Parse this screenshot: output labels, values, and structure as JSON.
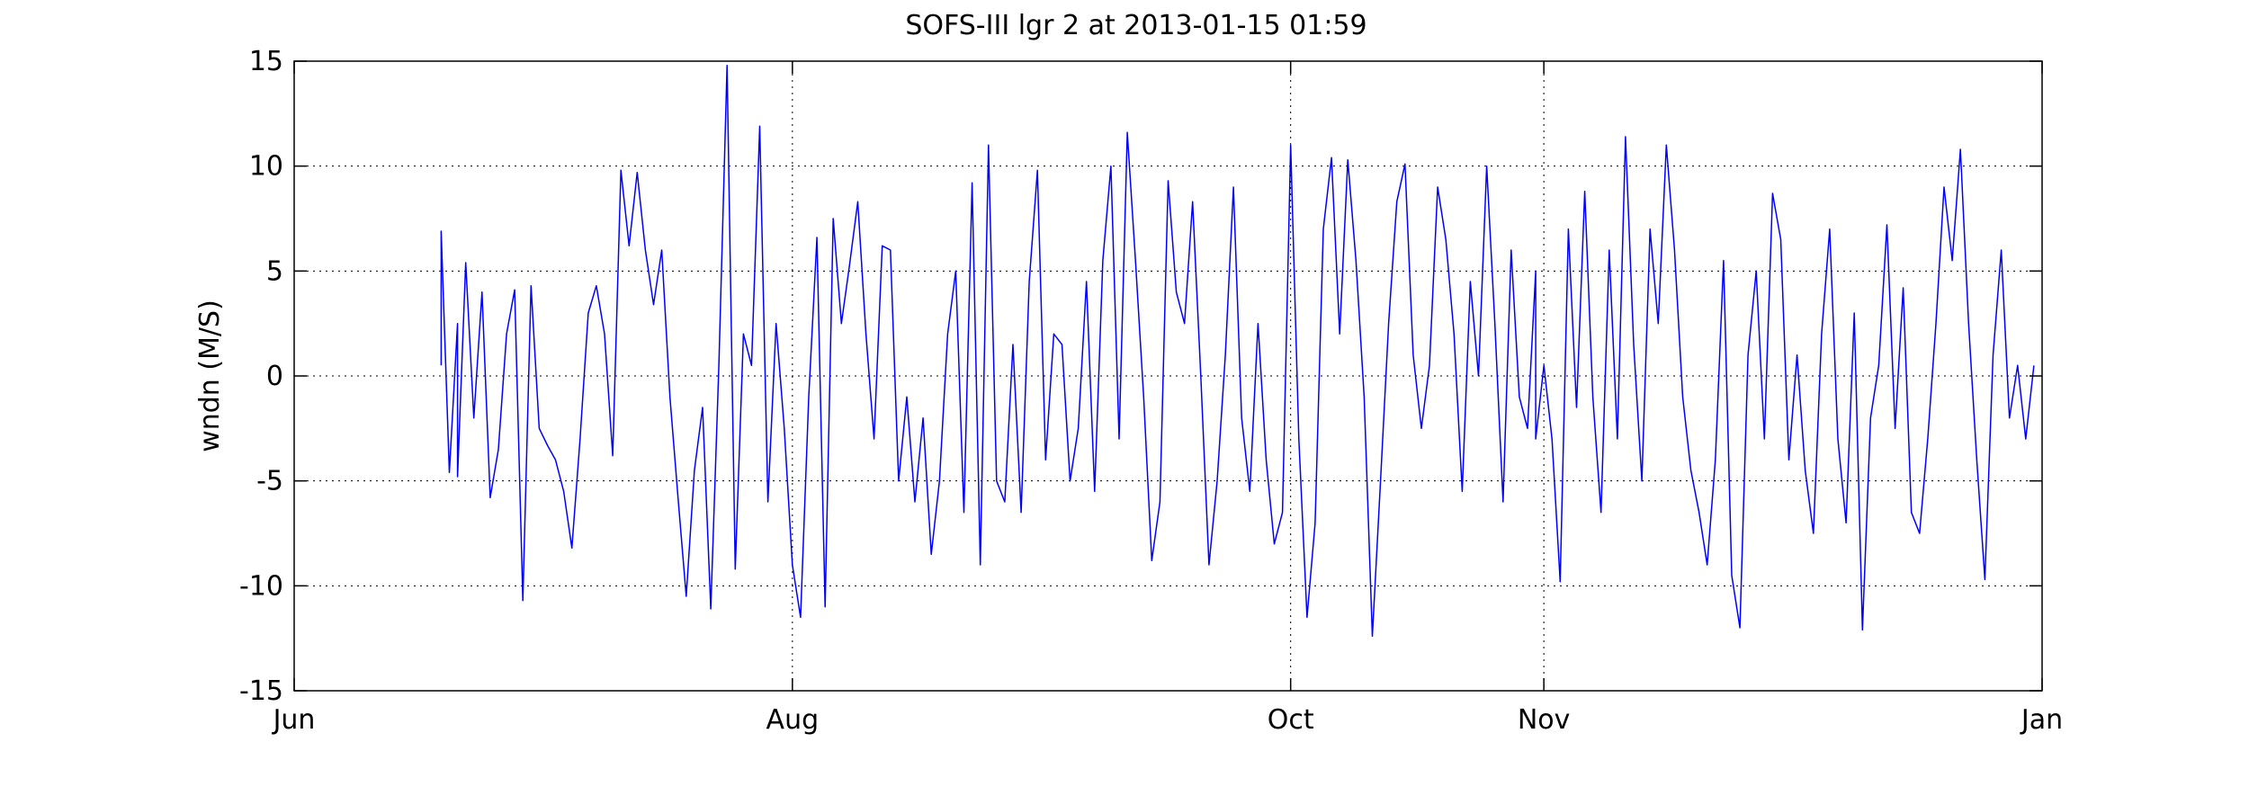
{
  "chart_data": {
    "type": "line",
    "title": "SOFS-III lgr 2 at 2013-01-15 01:59",
    "xlabel": "",
    "ylabel": "wndn (M/S)",
    "x_axis": {
      "type": "date",
      "range": [
        "2012-06-01",
        "2013-01-01"
      ],
      "tick_labels": [
        "Jun",
        "Aug",
        "Oct",
        "Nov",
        "Jan"
      ],
      "tick_dates": [
        "2012-06-01",
        "2012-08-01",
        "2012-10-01",
        "2012-11-01",
        "2013-01-01"
      ]
    },
    "ylim": [
      -15,
      15
    ],
    "y_ticks": [
      -15,
      -10,
      -5,
      0,
      5,
      10,
      15
    ],
    "y_tick_labels": [
      "-15",
      "-10",
      "-5",
      "0",
      "5",
      "10",
      "15"
    ],
    "grid": true,
    "series": [
      {
        "color": "#0000ff",
        "points": [
          [
            "2012-06-19",
            0.5
          ],
          [
            "2012-06-19",
            6.9
          ],
          [
            "2012-06-20",
            -4.6
          ],
          [
            "2012-06-21",
            2.5
          ],
          [
            "2012-06-21",
            -4.8
          ],
          [
            "2012-06-22",
            5.4
          ],
          [
            "2012-06-23",
            -2.0
          ],
          [
            "2012-06-24",
            4.0
          ],
          [
            "2012-06-25",
            -5.8
          ],
          [
            "2012-06-26",
            -3.5
          ],
          [
            "2012-06-27",
            2.0
          ],
          [
            "2012-06-28",
            4.1
          ],
          [
            "2012-06-29",
            -10.7
          ],
          [
            "2012-06-30",
            4.3
          ],
          [
            "2012-07-01",
            -2.5
          ],
          [
            "2012-07-02",
            -3.3
          ],
          [
            "2012-07-03",
            -4.0
          ],
          [
            "2012-07-04",
            -5.5
          ],
          [
            "2012-07-05",
            -8.2
          ],
          [
            "2012-07-06",
            -3.0
          ],
          [
            "2012-07-07",
            3.0
          ],
          [
            "2012-07-08",
            4.3
          ],
          [
            "2012-07-09",
            2.0
          ],
          [
            "2012-07-10",
            -3.8
          ],
          [
            "2012-07-11",
            9.8
          ],
          [
            "2012-07-12",
            6.2
          ],
          [
            "2012-07-13",
            9.7
          ],
          [
            "2012-07-14",
            6.0
          ],
          [
            "2012-07-15",
            3.4
          ],
          [
            "2012-07-16",
            6.0
          ],
          [
            "2012-07-17",
            -1.0
          ],
          [
            "2012-07-18",
            -5.8
          ],
          [
            "2012-07-19",
            -10.5
          ],
          [
            "2012-07-20",
            -4.5
          ],
          [
            "2012-07-21",
            -1.5
          ],
          [
            "2012-07-22",
            -11.1
          ],
          [
            "2012-07-23",
            0.5
          ],
          [
            "2012-07-24",
            14.8
          ],
          [
            "2012-07-25",
            -9.2
          ],
          [
            "2012-07-26",
            2.0
          ],
          [
            "2012-07-27",
            0.5
          ],
          [
            "2012-07-28",
            11.9
          ],
          [
            "2012-07-29",
            -6.0
          ],
          [
            "2012-07-30",
            2.5
          ],
          [
            "2012-07-31",
            -2.5
          ],
          [
            "2012-08-01",
            -9.0
          ],
          [
            "2012-08-02",
            -11.5
          ],
          [
            "2012-08-03",
            -1.0
          ],
          [
            "2012-08-04",
            6.6
          ],
          [
            "2012-08-05",
            -11.0
          ],
          [
            "2012-08-06",
            7.5
          ],
          [
            "2012-08-07",
            2.5
          ],
          [
            "2012-08-08",
            5.3
          ],
          [
            "2012-08-09",
            8.3
          ],
          [
            "2012-08-10",
            2.0
          ],
          [
            "2012-08-11",
            -3.0
          ],
          [
            "2012-08-12",
            6.2
          ],
          [
            "2012-08-13",
            6.0
          ],
          [
            "2012-08-14",
            -5.0
          ],
          [
            "2012-08-15",
            -1.0
          ],
          [
            "2012-08-16",
            -6.0
          ],
          [
            "2012-08-17",
            -2.0
          ],
          [
            "2012-08-18",
            -8.5
          ],
          [
            "2012-08-19",
            -5.0
          ],
          [
            "2012-08-20",
            2.0
          ],
          [
            "2012-08-21",
            5.0
          ],
          [
            "2012-08-22",
            -6.5
          ],
          [
            "2012-08-23",
            9.2
          ],
          [
            "2012-08-24",
            -9.0
          ],
          [
            "2012-08-25",
            11.0
          ],
          [
            "2012-08-26",
            -5.0
          ],
          [
            "2012-08-27",
            -6.0
          ],
          [
            "2012-08-28",
            1.5
          ],
          [
            "2012-08-29",
            -6.5
          ],
          [
            "2012-08-30",
            4.5
          ],
          [
            "2012-08-31",
            9.8
          ],
          [
            "2012-09-01",
            -4.0
          ],
          [
            "2012-09-02",
            2.0
          ],
          [
            "2012-09-03",
            1.5
          ],
          [
            "2012-09-04",
            -5.0
          ],
          [
            "2012-09-05",
            -2.5
          ],
          [
            "2012-09-06",
            4.5
          ],
          [
            "2012-09-07",
            -5.5
          ],
          [
            "2012-09-08",
            5.5
          ],
          [
            "2012-09-09",
            10.0
          ],
          [
            "2012-09-10",
            -3.0
          ],
          [
            "2012-09-11",
            11.6
          ],
          [
            "2012-09-12",
            5.5
          ],
          [
            "2012-09-13",
            -1.0
          ],
          [
            "2012-09-14",
            -8.8
          ],
          [
            "2012-09-15",
            -6.0
          ],
          [
            "2012-09-16",
            9.3
          ],
          [
            "2012-09-17",
            4.0
          ],
          [
            "2012-09-18",
            2.5
          ],
          [
            "2012-09-19",
            8.3
          ],
          [
            "2012-09-20",
            0.0
          ],
          [
            "2012-09-21",
            -9.0
          ],
          [
            "2012-09-22",
            -5.0
          ],
          [
            "2012-09-23",
            1.0
          ],
          [
            "2012-09-24",
            9.0
          ],
          [
            "2012-09-25",
            -2.0
          ],
          [
            "2012-09-26",
            -5.5
          ],
          [
            "2012-09-27",
            2.5
          ],
          [
            "2012-09-28",
            -4.0
          ],
          [
            "2012-09-29",
            -8.0
          ],
          [
            "2012-09-30",
            -6.5
          ],
          [
            "2012-10-01",
            11.0
          ],
          [
            "2012-10-02",
            -3.0
          ],
          [
            "2012-10-03",
            -11.5
          ],
          [
            "2012-10-04",
            -7.0
          ],
          [
            "2012-10-05",
            7.0
          ],
          [
            "2012-10-06",
            10.4
          ],
          [
            "2012-10-07",
            2.0
          ],
          [
            "2012-10-08",
            10.3
          ],
          [
            "2012-10-09",
            5.5
          ],
          [
            "2012-10-10",
            -1.0
          ],
          [
            "2012-10-11",
            -12.4
          ],
          [
            "2012-10-12",
            -5.0
          ],
          [
            "2012-10-13",
            2.5
          ],
          [
            "2012-10-14",
            8.3
          ],
          [
            "2012-10-15",
            10.1
          ],
          [
            "2012-10-16",
            1.0
          ],
          [
            "2012-10-17",
            -2.5
          ],
          [
            "2012-10-18",
            0.5
          ],
          [
            "2012-10-19",
            9.0
          ],
          [
            "2012-10-20",
            6.5
          ],
          [
            "2012-10-21",
            2.0
          ],
          [
            "2012-10-22",
            -5.5
          ],
          [
            "2012-10-23",
            4.5
          ],
          [
            "2012-10-24",
            0.0
          ],
          [
            "2012-10-25",
            10.0
          ],
          [
            "2012-10-26",
            2.5
          ],
          [
            "2012-10-27",
            -6.0
          ],
          [
            "2012-10-28",
            6.0
          ],
          [
            "2012-10-29",
            -1.0
          ],
          [
            "2012-10-30",
            -2.5
          ],
          [
            "2012-10-31",
            5.0
          ],
          [
            "2012-10-31",
            -3.0
          ],
          [
            "2012-11-01",
            0.5
          ],
          [
            "2012-11-02",
            -3.0
          ],
          [
            "2012-11-03",
            -9.8
          ],
          [
            "2012-11-04",
            7.0
          ],
          [
            "2012-11-05",
            -1.5
          ],
          [
            "2012-11-06",
            8.8
          ],
          [
            "2012-11-07",
            -1.0
          ],
          [
            "2012-11-08",
            -6.5
          ],
          [
            "2012-11-09",
            6.0
          ],
          [
            "2012-11-10",
            -3.0
          ],
          [
            "2012-11-11",
            11.4
          ],
          [
            "2012-11-12",
            1.5
          ],
          [
            "2012-11-13",
            -5.0
          ],
          [
            "2012-11-14",
            7.0
          ],
          [
            "2012-11-15",
            2.5
          ],
          [
            "2012-11-16",
            11.0
          ],
          [
            "2012-11-17",
            6.0
          ],
          [
            "2012-11-18",
            -1.0
          ],
          [
            "2012-11-19",
            -4.5
          ],
          [
            "2012-11-20",
            -6.5
          ],
          [
            "2012-11-21",
            -9.0
          ],
          [
            "2012-11-22",
            -4.0
          ],
          [
            "2012-11-23",
            5.5
          ],
          [
            "2012-11-24",
            -9.5
          ],
          [
            "2012-11-25",
            -12.0
          ],
          [
            "2012-11-26",
            1.0
          ],
          [
            "2012-11-27",
            5.0
          ],
          [
            "2012-11-28",
            -3.0
          ],
          [
            "2012-11-29",
            8.7
          ],
          [
            "2012-11-30",
            6.5
          ],
          [
            "2012-12-01",
            -4.0
          ],
          [
            "2012-12-02",
            1.0
          ],
          [
            "2012-12-03",
            -4.5
          ],
          [
            "2012-12-04",
            -7.5
          ],
          [
            "2012-12-05",
            2.0
          ],
          [
            "2012-12-06",
            7.0
          ],
          [
            "2012-12-07",
            -3.0
          ],
          [
            "2012-12-08",
            -7.0
          ],
          [
            "2012-12-09",
            3.0
          ],
          [
            "2012-12-10",
            -12.1
          ],
          [
            "2012-12-11",
            -2.0
          ],
          [
            "2012-12-12",
            0.5
          ],
          [
            "2012-12-13",
            7.2
          ],
          [
            "2012-12-14",
            -2.5
          ],
          [
            "2012-12-15",
            4.2
          ],
          [
            "2012-12-16",
            -6.5
          ],
          [
            "2012-12-17",
            -7.5
          ],
          [
            "2012-12-18",
            -3.0
          ],
          [
            "2012-12-19",
            2.5
          ],
          [
            "2012-12-20",
            9.0
          ],
          [
            "2012-12-21",
            5.5
          ],
          [
            "2012-12-22",
            10.8
          ],
          [
            "2012-12-23",
            2.5
          ],
          [
            "2012-12-24",
            -4.0
          ],
          [
            "2012-12-25",
            -9.7
          ],
          [
            "2012-12-26",
            1.0
          ],
          [
            "2012-12-27",
            6.0
          ],
          [
            "2012-12-28",
            -2.0
          ],
          [
            "2012-12-29",
            0.5
          ],
          [
            "2012-12-30",
            -3.0
          ],
          [
            "2012-12-31",
            0.5
          ]
        ]
      }
    ]
  }
}
